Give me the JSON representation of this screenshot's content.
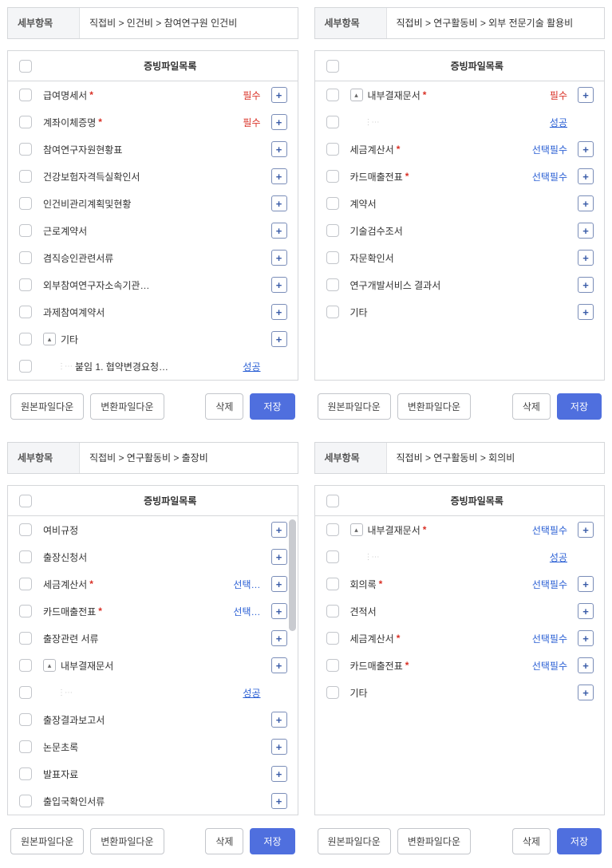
{
  "common": {
    "detail_label": "세부항목",
    "list_header": "증빙파일목록",
    "btn_original": "원본파일다운",
    "btn_converted": "변환파일다운",
    "btn_delete": "삭제",
    "btn_save": "저장",
    "plus_label": "+",
    "toggle_up": "▴",
    "colors": {
      "required": "#d93025",
      "select": "#2a5fd4",
      "link": "#2a5fd4",
      "border": "#d5d7da",
      "primary": "#4f6fde"
    }
  },
  "panels": [
    {
      "breadcrumb": "직접비 > 인건비 > 참여연구원 인건비",
      "scroll": false,
      "rows": [
        {
          "label": "급여명세서",
          "required": true,
          "tag": "필수",
          "tag_class": "tag-required",
          "plus": true
        },
        {
          "label": "계좌이체증명",
          "required": true,
          "tag": "필수",
          "tag_class": "tag-required",
          "plus": true
        },
        {
          "label": "참여연구자원현황표",
          "plus": true
        },
        {
          "label": "건강보험자격득실확인서",
          "plus": true
        },
        {
          "label": "인건비관리계획및현황",
          "plus": true
        },
        {
          "label": "근로계약서",
          "plus": true
        },
        {
          "label": "겸직승인관련서류",
          "plus": true
        },
        {
          "label": "외부참여연구자소속기관…",
          "plus": true
        },
        {
          "label": "과제참여계약서",
          "plus": true
        },
        {
          "label": "기타",
          "toggle": true,
          "plus": true
        },
        {
          "label": "붙임 1. 협약변경요청…",
          "indent": 1,
          "tree": true,
          "tag": "성공",
          "tag_class": "tag-success"
        }
      ]
    },
    {
      "breadcrumb": "직접비 > 연구활동비 > 외부 전문기술 활용비",
      "scroll": false,
      "rows": [
        {
          "label": "내부결재문서",
          "required": true,
          "toggle": true,
          "tag": "필수",
          "tag_class": "tag-required",
          "plus": true
        },
        {
          "label": " ",
          "indent": 1,
          "tree": true,
          "tag": "성공",
          "tag_class": "tag-success"
        },
        {
          "label": "세금계산서",
          "required": true,
          "tag": "선택필수",
          "tag_class": "tag-select",
          "plus": true
        },
        {
          "label": "카드매출전표",
          "required": true,
          "tag": "선택필수",
          "tag_class": "tag-select",
          "plus": true
        },
        {
          "label": "계약서",
          "plus": true
        },
        {
          "label": "기술검수조서",
          "plus": true
        },
        {
          "label": "자문확인서",
          "plus": true
        },
        {
          "label": "연구개발서비스 결과서",
          "plus": true
        },
        {
          "label": "기타",
          "plus": true
        }
      ]
    },
    {
      "breadcrumb": "직접비 > 연구활동비 > 출장비",
      "scroll": true,
      "rows": [
        {
          "label": "여비규정",
          "plus": true
        },
        {
          "label": "출장신청서",
          "plus": true
        },
        {
          "label": "세금계산서",
          "required": true,
          "tag": "선택…",
          "tag_class": "tag-select",
          "plus": true
        },
        {
          "label": "카드매출전표",
          "required": true,
          "tag": "선택…",
          "tag_class": "tag-select",
          "plus": true
        },
        {
          "label": "출장관련 서류",
          "plus": true
        },
        {
          "label": "내부결재문서",
          "toggle": true,
          "plus": true
        },
        {
          "label": " ",
          "indent": 1,
          "tree": true,
          "tag": "성공",
          "tag_class": "tag-success"
        },
        {
          "label": "출장결과보고서",
          "plus": true
        },
        {
          "label": "논문초록",
          "plus": true
        },
        {
          "label": "발표자료",
          "plus": true
        },
        {
          "label": "출입국확인서류",
          "plus": true
        }
      ]
    },
    {
      "breadcrumb": "직접비 > 연구활동비 > 회의비",
      "scroll": false,
      "rows": [
        {
          "label": "내부결재문서",
          "required": true,
          "toggle": true,
          "tag": "선택필수",
          "tag_class": "tag-select",
          "plus": true
        },
        {
          "label": " ",
          "indent": 1,
          "tree": true,
          "tag": "성공",
          "tag_class": "tag-success"
        },
        {
          "label": "회의록",
          "required": true,
          "tag": "선택필수",
          "tag_class": "tag-select",
          "plus": true
        },
        {
          "label": "견적서",
          "plus": true
        },
        {
          "label": "세금계산서",
          "required": true,
          "tag": "선택필수",
          "tag_class": "tag-select",
          "plus": true
        },
        {
          "label": "카드매출전표",
          "required": true,
          "tag": "선택필수",
          "tag_class": "tag-select",
          "plus": true
        },
        {
          "label": "기타",
          "plus": true
        }
      ]
    }
  ]
}
